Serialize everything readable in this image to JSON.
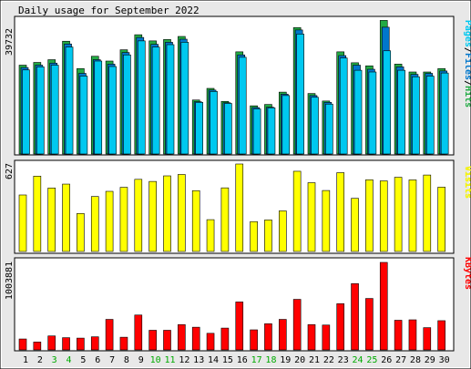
{
  "title": "Daily usage for September 2022",
  "colors": {
    "background": "#e8e8e8",
    "panel": "#ffffff",
    "border": "#000000",
    "hits": "#22aa44",
    "files": "#0077cc",
    "pages": "#00c8f0",
    "visits": "#ffff00",
    "kbytes": "#ff0000",
    "weekend": "#00aa00",
    "weekday": "#000000"
  },
  "x_axis": {
    "days": [
      "1",
      "2",
      "3",
      "4",
      "5",
      "6",
      "7",
      "8",
      "9",
      "10",
      "11",
      "12",
      "13",
      "14",
      "15",
      "16",
      "17",
      "18",
      "19",
      "20",
      "21",
      "22",
      "23",
      "24",
      "25",
      "26",
      "27",
      "28",
      "29",
      "30"
    ],
    "weekend_days": [
      "3",
      "4",
      "10",
      "11",
      "17",
      "18",
      "24",
      "25"
    ]
  },
  "legends": {
    "hits_files_pages": [
      {
        "text": "Pages",
        "color": "#00c8f0"
      },
      {
        "text": "/",
        "color": "#000000"
      },
      {
        "text": "Files",
        "color": "#0077cc"
      },
      {
        "text": "/",
        "color": "#000000"
      },
      {
        "text": "Hits",
        "color": "#22aa44"
      }
    ],
    "visits": "Visits",
    "kbytes": "KBytes"
  },
  "chart_data": [
    {
      "type": "bar",
      "name": "hits-files-pages",
      "ymax_label": "39732",
      "ylim": [
        0,
        39732
      ],
      "categories": [
        "1",
        "2",
        "3",
        "4",
        "5",
        "6",
        "7",
        "8",
        "9",
        "10",
        "11",
        "12",
        "13",
        "14",
        "15",
        "16",
        "17",
        "18",
        "19",
        "20",
        "21",
        "22",
        "23",
        "24",
        "25",
        "26",
        "27",
        "28",
        "29",
        "30"
      ],
      "series": [
        {
          "name": "Hits",
          "values": [
            26000,
            26800,
            27600,
            33000,
            25000,
            28600,
            27200,
            30500,
            34900,
            33100,
            33500,
            34400,
            15800,
            19200,
            15400,
            29900,
            14100,
            14500,
            18100,
            37000,
            17700,
            15500,
            29900,
            26700,
            25800,
            39100,
            26300,
            24000,
            24000,
            25000
          ]
        },
        {
          "name": "Files",
          "values": [
            25300,
            26000,
            26600,
            32200,
            23600,
            27600,
            26300,
            29700,
            34100,
            32100,
            32700,
            33600,
            15300,
            18700,
            15000,
            29000,
            13600,
            13700,
            17500,
            36300,
            17100,
            15100,
            28800,
            26000,
            24800,
            37100,
            25500,
            23300,
            23600,
            24300
          ]
        },
        {
          "name": "Pages",
          "values": [
            24600,
            25500,
            26000,
            31300,
            22800,
            27200,
            25600,
            29000,
            33100,
            31300,
            32000,
            32700,
            15100,
            18300,
            14800,
            28300,
            13200,
            13500,
            17100,
            35100,
            16600,
            14600,
            28100,
            24500,
            24000,
            30200,
            24500,
            22600,
            22800,
            23700
          ]
        }
      ]
    },
    {
      "type": "bar",
      "name": "visits",
      "ymax_label": "627",
      "ylim": [
        0,
        627
      ],
      "categories": [
        "1",
        "2",
        "3",
        "4",
        "5",
        "6",
        "7",
        "8",
        "9",
        "10",
        "11",
        "12",
        "13",
        "14",
        "15",
        "16",
        "17",
        "18",
        "19",
        "20",
        "21",
        "22",
        "23",
        "24",
        "25",
        "26",
        "27",
        "28",
        "29",
        "30"
      ],
      "series": [
        {
          "name": "Visits",
          "values": [
            405,
            540,
            455,
            483,
            272,
            394,
            431,
            460,
            517,
            502,
            542,
            552,
            436,
            228,
            456,
            627,
            214,
            226,
            291,
            575,
            493,
            437,
            565,
            381,
            514,
            506,
            532,
            513,
            548,
            461
          ]
        }
      ]
    },
    {
      "type": "bar",
      "name": "kbytes",
      "ymax_label": "1003881",
      "ylim": [
        0,
        1003881
      ],
      "categories": [
        "1",
        "2",
        "3",
        "4",
        "5",
        "6",
        "7",
        "8",
        "9",
        "10",
        "11",
        "12",
        "13",
        "14",
        "15",
        "16",
        "17",
        "18",
        "19",
        "20",
        "21",
        "22",
        "23",
        "24",
        "25",
        "26",
        "27",
        "28",
        "29",
        "30"
      ],
      "series": [
        {
          "name": "KBytes",
          "values": [
            125000,
            90000,
            160000,
            140000,
            135000,
            150000,
            350000,
            145000,
            400000,
            225000,
            225000,
            290000,
            260000,
            190000,
            250000,
            550000,
            230000,
            300000,
            350000,
            580000,
            290000,
            285000,
            530000,
            760000,
            590000,
            1003881,
            340000,
            345000,
            255000,
            335000
          ]
        }
      ]
    }
  ]
}
